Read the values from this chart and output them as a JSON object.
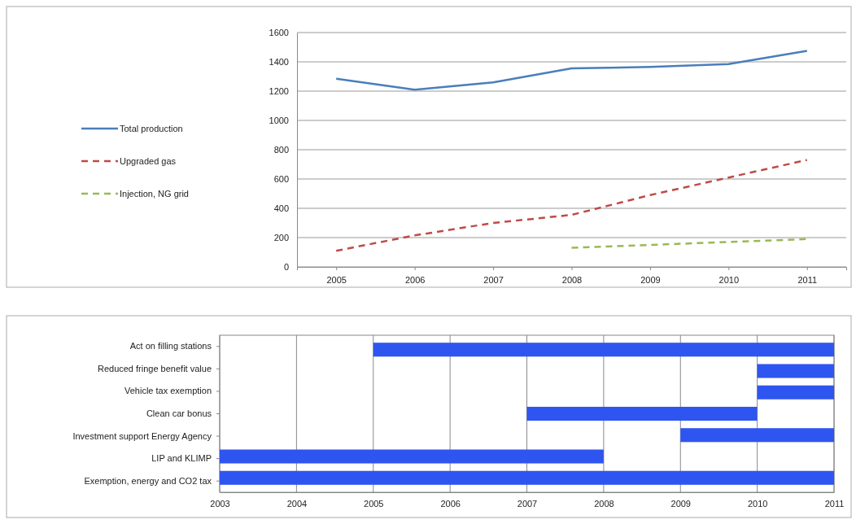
{
  "chart_data": [
    {
      "type": "line",
      "categories": [
        "2005",
        "2006",
        "2007",
        "2008",
        "2009",
        "2010",
        "2011"
      ],
      "ylim": [
        0,
        1600
      ],
      "yticks": [
        0,
        200,
        400,
        600,
        800,
        1000,
        1200,
        1400,
        1600
      ],
      "grid": "y",
      "legend": "left",
      "series": [
        {
          "name": "Total production",
          "color": "#4a7ebb",
          "line_style": "solid",
          "values": [
            1285,
            1210,
            1260,
            1355,
            1365,
            1385,
            1475
          ]
        },
        {
          "name": "Upgraded gas",
          "color": "#be4b48",
          "line_style": "dashed",
          "values": [
            110,
            215,
            300,
            355,
            490,
            610,
            730
          ]
        },
        {
          "name": "Injection, NG grid",
          "color": "#98b954",
          "line_style": "dashed",
          "values": [
            null,
            null,
            null,
            130,
            150,
            170,
            190
          ]
        }
      ]
    },
    {
      "type": "bar",
      "orientation": "horizontal",
      "categories": [
        "Act on filling stations",
        "Reduced fringe benefit value",
        "Vehicle tax exemption",
        "Clean car bonus",
        "Investment support Energy Agency",
        "LIP and KLIMP",
        "Exemption, energy and CO2 tax"
      ],
      "base": [
        2005,
        2010,
        2010,
        2007,
        2009,
        2003,
        2003
      ],
      "values": [
        6,
        1,
        1,
        3,
        2,
        5,
        8
      ],
      "color": "#2f55f0",
      "xlim": [
        2003,
        2011
      ],
      "xticks": [
        2003,
        2004,
        2005,
        2006,
        2007,
        2008,
        2009,
        2010,
        2011
      ],
      "grid": "x"
    }
  ]
}
